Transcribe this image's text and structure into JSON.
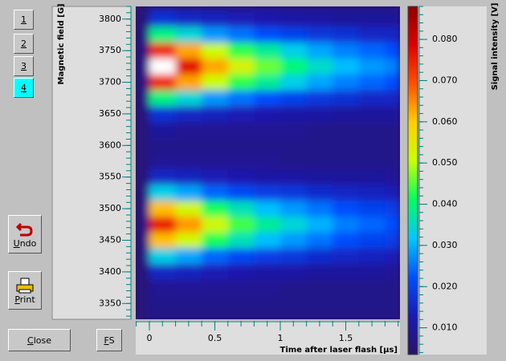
{
  "sidebar": {
    "page_buttons": [
      "1",
      "2",
      "3",
      "4"
    ],
    "selected_page": 3,
    "undo": "Undo",
    "print": "Print"
  },
  "footer": {
    "close": "Close",
    "fs": "FS"
  },
  "chart_data": {
    "type": "heatmap",
    "xlabel": "Time after laser flash [μs]",
    "ylabel": "Magnetic field [G]",
    "colorbar_label": "Signal intensity [V]",
    "x": [
      -0.1,
      0.1,
      0.3,
      0.5,
      0.7,
      0.9,
      1.1,
      1.3,
      1.5,
      1.7,
      1.9
    ],
    "y": [
      3825,
      3800,
      3775,
      3750,
      3725,
      3700,
      3675,
      3650,
      3625,
      3600,
      3575,
      3550,
      3525,
      3500,
      3475,
      3450,
      3425,
      3400,
      3375,
      3350,
      3325
    ],
    "values": [
      [
        0.006,
        0.01,
        0.009,
        0.009,
        0.009,
        0.009,
        0.009,
        0.008,
        0.008,
        0.008,
        0.008
      ],
      [
        0.006,
        0.017,
        0.015,
        0.014,
        0.013,
        0.012,
        0.011,
        0.011,
        0.01,
        0.01,
        0.01
      ],
      [
        0.006,
        0.039,
        0.034,
        0.028,
        0.025,
        0.022,
        0.02,
        0.018,
        0.017,
        0.015,
        0.015
      ],
      [
        0.006,
        0.074,
        0.063,
        0.051,
        0.043,
        0.038,
        0.033,
        0.029,
        0.026,
        0.024,
        0.022
      ],
      [
        0.006,
        0.093,
        0.078,
        0.063,
        0.053,
        0.046,
        0.04,
        0.035,
        0.031,
        0.028,
        0.026
      ],
      [
        0.006,
        0.074,
        0.063,
        0.051,
        0.043,
        0.038,
        0.033,
        0.029,
        0.026,
        0.024,
        0.022
      ],
      [
        0.006,
        0.039,
        0.034,
        0.028,
        0.025,
        0.022,
        0.02,
        0.018,
        0.017,
        0.015,
        0.015
      ],
      [
        0.006,
        0.017,
        0.015,
        0.014,
        0.013,
        0.012,
        0.011,
        0.011,
        0.01,
        0.01,
        0.01
      ],
      [
        0.006,
        0.01,
        0.009,
        0.009,
        0.009,
        0.009,
        0.009,
        0.008,
        0.008,
        0.008,
        0.008
      ],
      [
        0.006,
        0.008,
        0.008,
        0.008,
        0.008,
        0.008,
        0.008,
        0.008,
        0.008,
        0.008,
        0.008
      ],
      [
        0.006,
        0.009,
        0.009,
        0.009,
        0.009,
        0.009,
        0.008,
        0.008,
        0.008,
        0.008,
        0.008
      ],
      [
        0.006,
        0.015,
        0.014,
        0.013,
        0.012,
        0.011,
        0.011,
        0.01,
        0.01,
        0.01,
        0.009
      ],
      [
        0.006,
        0.033,
        0.029,
        0.024,
        0.021,
        0.019,
        0.018,
        0.016,
        0.015,
        0.014,
        0.013
      ],
      [
        0.006,
        0.061,
        0.052,
        0.042,
        0.036,
        0.031,
        0.028,
        0.025,
        0.022,
        0.02,
        0.019
      ],
      [
        0.006,
        0.076,
        0.064,
        0.052,
        0.044,
        0.038,
        0.034,
        0.03,
        0.026,
        0.024,
        0.022
      ],
      [
        0.006,
        0.061,
        0.052,
        0.042,
        0.036,
        0.031,
        0.028,
        0.025,
        0.022,
        0.02,
        0.019
      ],
      [
        0.006,
        0.033,
        0.029,
        0.024,
        0.021,
        0.019,
        0.018,
        0.016,
        0.015,
        0.014,
        0.013
      ],
      [
        0.006,
        0.015,
        0.014,
        0.013,
        0.012,
        0.011,
        0.011,
        0.01,
        0.01,
        0.01,
        0.009
      ],
      [
        0.006,
        0.009,
        0.009,
        0.009,
        0.009,
        0.009,
        0.008,
        0.008,
        0.008,
        0.008,
        0.008
      ],
      [
        0.006,
        0.008,
        0.008,
        0.008,
        0.008,
        0.008,
        0.008,
        0.008,
        0.008,
        0.008,
        0.008
      ],
      [
        0.006,
        0.008,
        0.008,
        0.008,
        0.008,
        0.008,
        0.008,
        0.008,
        0.008,
        0.008,
        0.008
      ]
    ],
    "xlim": [
      -0.104,
      1.914
    ],
    "ylim": [
      3325,
      3820
    ],
    "xticks": [
      0,
      0.5,
      1,
      1.5
    ],
    "yticks": [
      3350,
      3400,
      3450,
      3500,
      3550,
      3600,
      3650,
      3700,
      3750,
      3800
    ],
    "x_minor_tick_step": 0.1,
    "y_minor_tick_step": 10,
    "clim": [
      0.0035,
      0.088
    ],
    "cticks": [
      {
        "value": 0.01,
        "label": "0.010"
      },
      {
        "value": 0.02,
        "label": "0.020"
      },
      {
        "value": 0.03,
        "label": "0.030"
      },
      {
        "value": 0.04,
        "label": "0.040"
      },
      {
        "value": 0.05,
        "label": "0.050"
      },
      {
        "value": 0.06,
        "label": "0.060"
      },
      {
        "value": 0.07,
        "label": "0.070"
      },
      {
        "value": 0.08,
        "label": "0.080"
      }
    ],
    "c_minor_tick_step": 0.002,
    "colorscale": [
      "#2a1466",
      "#1a1ab4",
      "#0050ff",
      "#00c8ff",
      "#00ff60",
      "#c8ff00",
      "#ffd000",
      "#ff5000",
      "#e00000",
      "#900000"
    ],
    "over_color": "#ffffff",
    "tick_color": "#008080"
  }
}
